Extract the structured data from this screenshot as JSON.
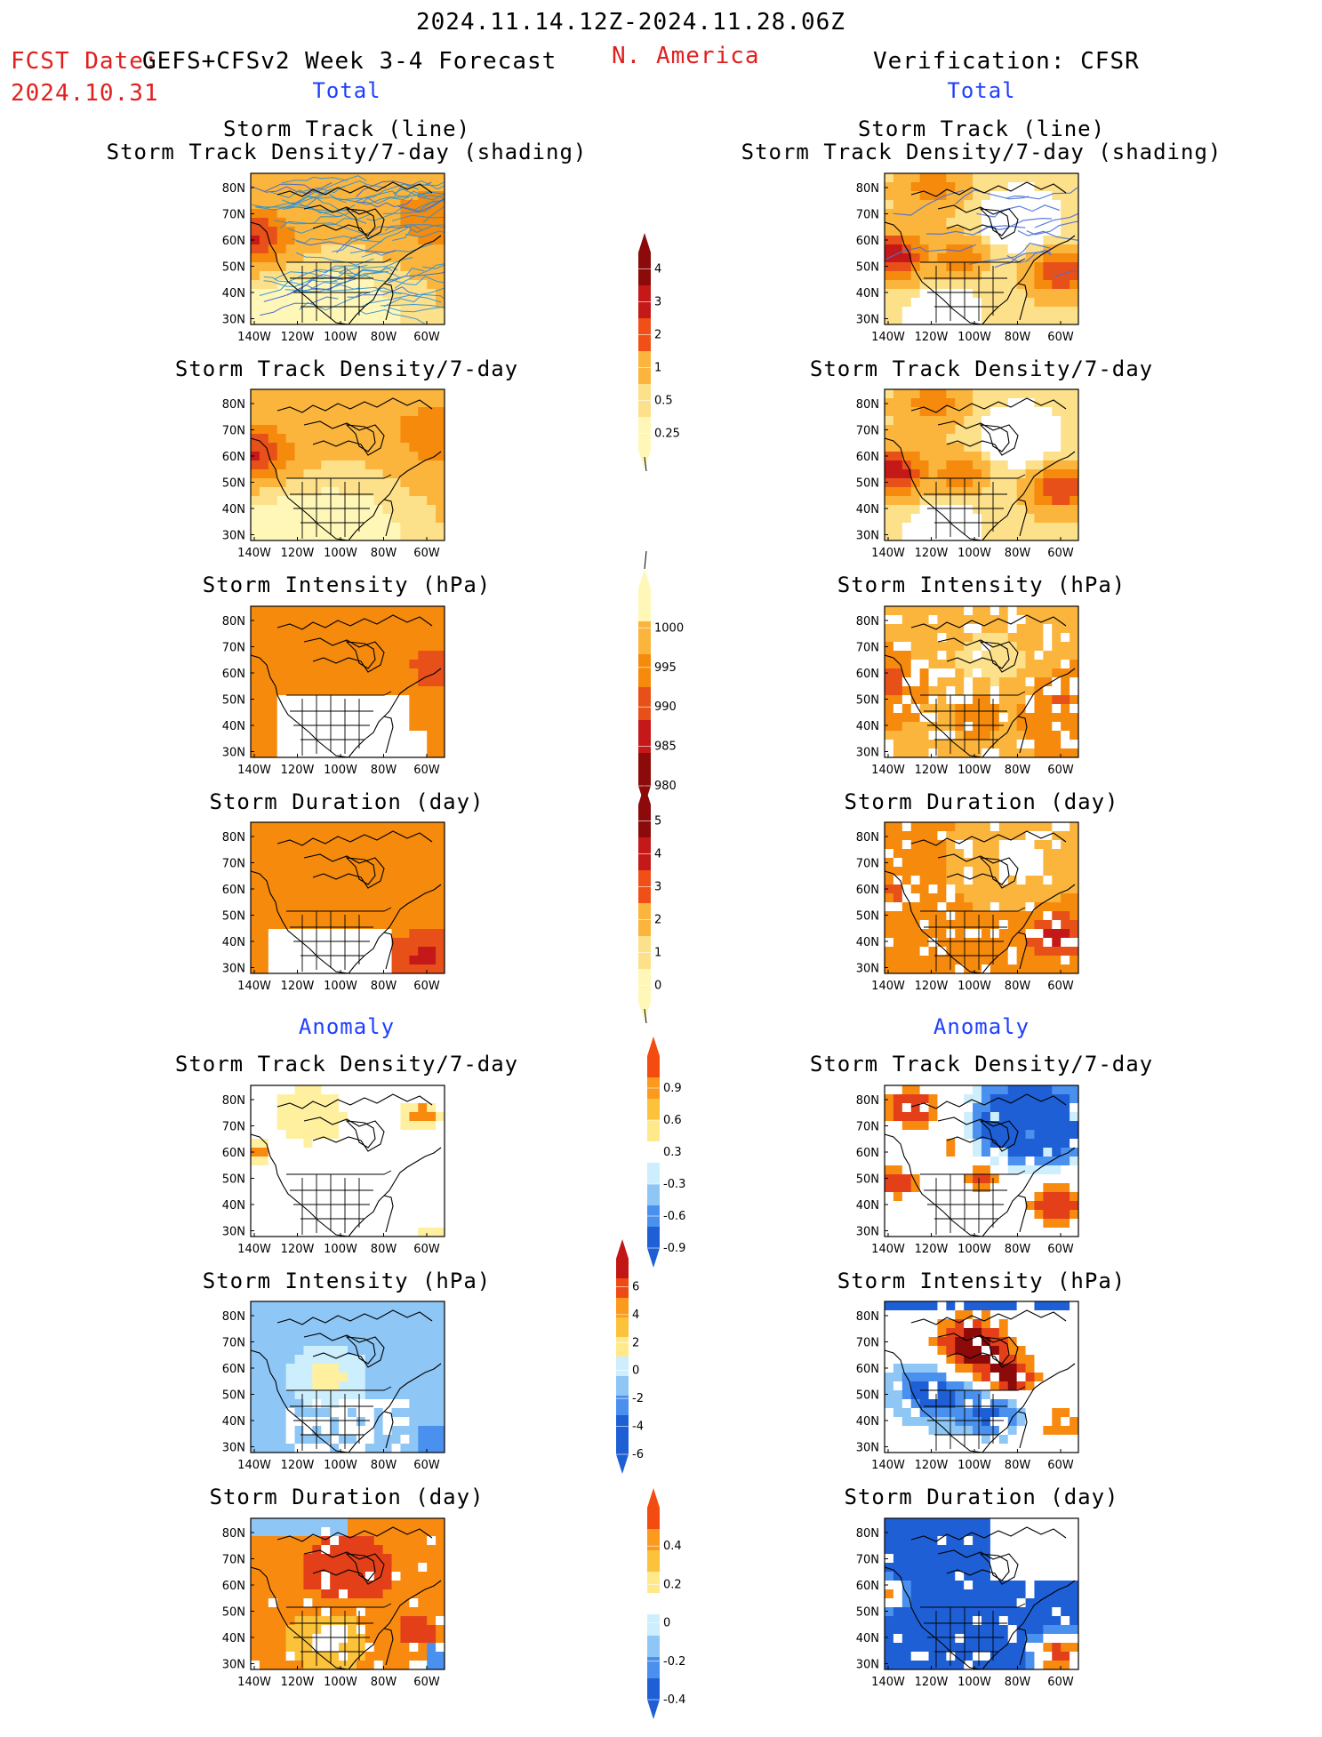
{
  "header": {
    "date_range": "2024.11.14.12Z-2024.11.28.06Z",
    "fcst_date_label": "FCST Date:",
    "fcst_date_value": "2024.10.31",
    "model_title": "GEFS+CFSv2 Week 3-4 Forecast",
    "region": "N. America",
    "verification": "Verification: CFSR"
  },
  "sections": {
    "total_left": "Total",
    "total_right": "Total",
    "anomaly_left": "Anomaly",
    "anomaly_right": "Anomaly"
  },
  "panel_titles": {
    "track_line": "Storm Track (line)",
    "track_shading": "Storm Track Density/7-day (shading)",
    "density": "Storm Track Density/7-day",
    "intensity": "Storm Intensity (hPa)",
    "duration": "Storm Duration (day)"
  },
  "axes": {
    "lat_labels": [
      "80N",
      "70N",
      "60N",
      "50N",
      "40N",
      "30N"
    ],
    "lon_labels": [
      "140W",
      "120W",
      "100W",
      "80W",
      "60W"
    ]
  },
  "colorbars": {
    "density_total": [
      "4",
      "3",
      "2",
      "1",
      "0.5",
      "0.25"
    ],
    "intensity_total": [
      "1000",
      "995",
      "990",
      "985",
      "980"
    ],
    "duration_total": [
      "5",
      "4",
      "3",
      "2",
      "1",
      "0"
    ],
    "density_anom": [
      "0.9",
      "0.6",
      "0.3",
      "-0.3",
      "-0.6",
      "-0.9"
    ],
    "intensity_anom": [
      "6",
      "4",
      "2",
      "0",
      "-2",
      "-4",
      "-6"
    ],
    "duration_anom": [
      "0.4",
      "0.2",
      "0",
      "-0.2",
      "-0.4"
    ]
  },
  "colors": {
    "seq": [
      "#fff7b8",
      "#fde08a",
      "#fbb53c",
      "#f58a0c",
      "#e8501a",
      "#c51818",
      "#8c0a0a"
    ],
    "div": [
      "#1e5fd6",
      "#4a90ee",
      "#8ec6f5",
      "#cdeefc",
      "#ffffff",
      "#fff0a0",
      "#fcc23a",
      "#f88a10",
      "#e3401a"
    ],
    "track_line": "#2a8fd6",
    "map_line": "#000000",
    "title_red": "#e02020",
    "title_blue": "#1f3fff"
  }
}
